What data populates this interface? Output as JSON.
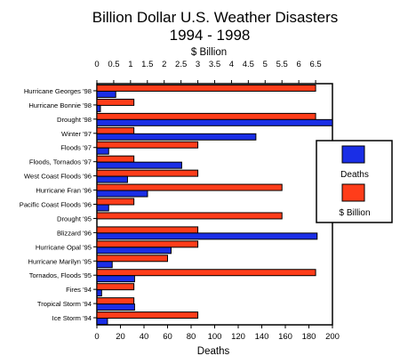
{
  "chart_data": {
    "type": "bar",
    "title": "Billion Dollar U.S. Weather Disasters",
    "subtitle": "1994 - 1998",
    "xlabel": "Deaths",
    "x2label": "$ Billion",
    "xlim": [
      0,
      200
    ],
    "x2lim": [
      0,
      7
    ],
    "x_ticks": [
      "0",
      "20",
      "40",
      "60",
      "80",
      "100",
      "120",
      "140",
      "160",
      "180",
      "200"
    ],
    "x2_ticks": [
      "0",
      "0.5",
      "1",
      "1.5",
      "2",
      "2.5",
      "3",
      "3.5",
      "4",
      "4.5",
      "5",
      "5.5",
      "6",
      "6.5"
    ],
    "grid": false,
    "legend_position": "right",
    "categories": [
      "Hurricane Georges '98",
      "Hurricane Bonnie '98",
      "Drought '98",
      "Winter '97",
      "Floods '97",
      "Floods, Tornados '97",
      "West Coast Floods '96",
      "Hurricane Fran '96",
      "Pacific Coast Floods '96",
      "Drought '95",
      "Blizzard '96",
      "Hurricane Opal '95",
      "Hurricane Marilyn '95",
      "Tornados, Floods '95",
      "Fires '94",
      "Tropical Storm '94",
      "Ice Storm '94"
    ],
    "series": [
      {
        "name": "Deaths",
        "color": "#1a2ee6",
        "axis": "bottom",
        "values": [
          16,
          3,
          200,
          135,
          10,
          72,
          26,
          43,
          10,
          0,
          187,
          63,
          13,
          32,
          4,
          32,
          9
        ]
      },
      {
        "name": "$ Billion",
        "color": "#ff3d1a",
        "axis": "top",
        "values": [
          6.5,
          1.1,
          6.5,
          1.1,
          3.0,
          1.1,
          3.0,
          5.5,
          1.1,
          5.5,
          3.0,
          3.0,
          2.1,
          6.5,
          1.1,
          1.1,
          3.0
        ]
      }
    ]
  }
}
